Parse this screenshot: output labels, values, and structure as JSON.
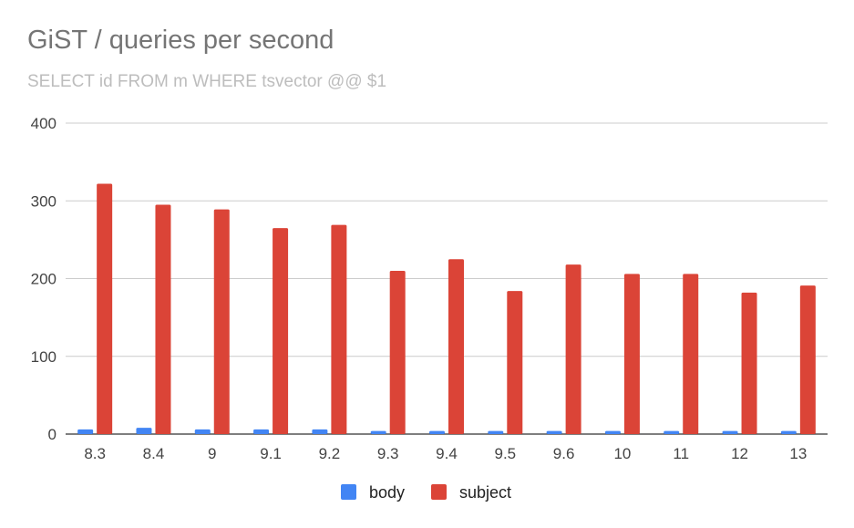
{
  "chart_data": {
    "type": "bar",
    "title": "GiST / queries per second",
    "subtitle": "SELECT id FROM m WHERE tsvector @@ $1",
    "xlabel": "",
    "ylabel": "",
    "categories": [
      "8.3",
      "8.4",
      "9",
      "9.1",
      "9.2",
      "9.3",
      "9.4",
      "9.5",
      "9.6",
      "10",
      "11",
      "12",
      "13"
    ],
    "series": [
      {
        "name": "body",
        "color": "#4285f4",
        "values": [
          6,
          8,
          6,
          6,
          6,
          4,
          4,
          4,
          4,
          4,
          4,
          4,
          4
        ]
      },
      {
        "name": "subject",
        "color": "#db4437",
        "values": [
          322,
          295,
          289,
          265,
          269,
          210,
          225,
          184,
          218,
          206,
          206,
          182,
          191
        ]
      }
    ],
    "ylim": [
      0,
      400
    ],
    "yticks": [
      "0",
      "100",
      "200",
      "300",
      "400"
    ],
    "grid": true,
    "legend_position": "bottom"
  }
}
